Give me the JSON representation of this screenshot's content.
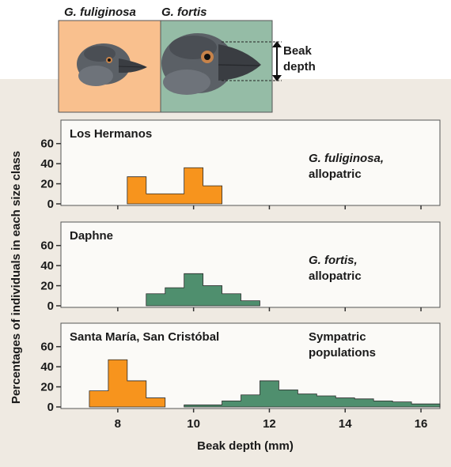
{
  "header": {
    "species_left": "G. fuliginosa",
    "species_right": "G. fortis",
    "beak_label_line1": "Beak",
    "beak_label_line2": "depth",
    "left_panel_color": "#f9c08e",
    "right_panel_color": "#95bca6"
  },
  "colors": {
    "fuliginosa": "#f7941d",
    "fortis": "#4f8f6e",
    "panel_fill": "#fbfaf7"
  },
  "chart_data": {
    "type": "bar",
    "ylabel": "Percentages of individuals in each size class",
    "xlabel": "Beak depth (mm)",
    "xlim": [
      6.5,
      16.5
    ],
    "x_ticks": [
      8,
      10,
      12,
      14,
      16
    ],
    "ylim": [
      0,
      70
    ],
    "y_ticks": [
      0,
      20,
      40,
      60
    ],
    "bin_width": 0.5,
    "panels": [
      {
        "title": "Los Hermanos",
        "annotation_species": "G. fuliginosa,",
        "annotation_note": "allopatric",
        "series": [
          {
            "species": "fuliginosa",
            "bin_starts": [
              8.25,
              8.75,
              9.25,
              9.75,
              10.25
            ],
            "values": [
              27,
              10,
              10,
              36,
              18
            ]
          }
        ]
      },
      {
        "title": "Daphne",
        "annotation_species": "G. fortis,",
        "annotation_note": "allopatric",
        "series": [
          {
            "species": "fortis",
            "bin_starts": [
              8.75,
              9.25,
              9.75,
              10.25,
              10.75,
              11.25
            ],
            "values": [
              12,
              18,
              32,
              20,
              12,
              5
            ]
          }
        ]
      },
      {
        "title": "Santa María, San Cristóbal",
        "annotation_species": "Sympatric",
        "annotation_note": "populations",
        "series": [
          {
            "species": "fuliginosa",
            "bin_starts": [
              7.25,
              7.75,
              8.25,
              8.75
            ],
            "values": [
              16,
              47,
              26,
              9
            ]
          },
          {
            "species": "fortis",
            "bin_starts": [
              9.75,
              10.25,
              10.75,
              11.25,
              11.75,
              12.25,
              12.75,
              13.25,
              13.75,
              14.25,
              14.75,
              15.25,
              15.75,
              16.25
            ],
            "values": [
              2,
              2,
              6,
              12,
              26,
              17,
              13,
              11,
              9,
              8,
              6,
              5,
              3,
              3
            ]
          }
        ]
      }
    ]
  }
}
